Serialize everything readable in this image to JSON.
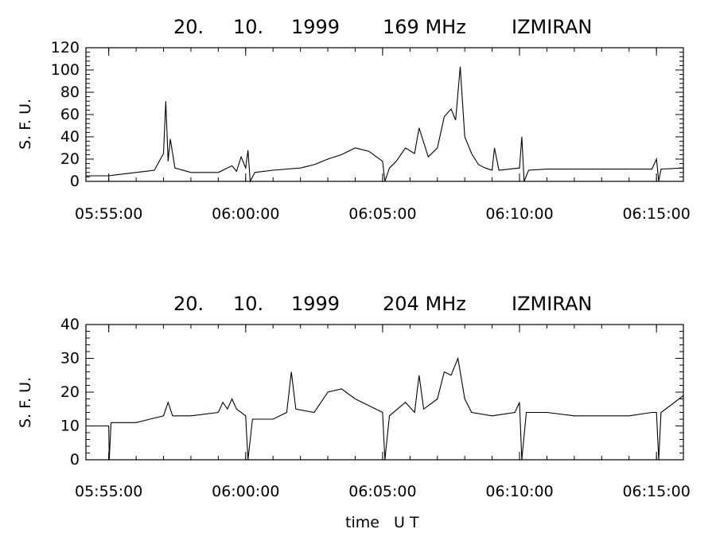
{
  "chart_data": [
    {
      "type": "line",
      "title_parts": [
        "20.",
        "10.",
        "1999",
        "169 MHz",
        "IZMIRAN"
      ],
      "ylabel": "S. F. U.",
      "xlabel": "",
      "ylim": [
        0,
        120
      ],
      "xlim": [
        "05:54:10",
        "06:15:59"
      ],
      "yticks": [
        0,
        20,
        40,
        60,
        80,
        100,
        120
      ],
      "xticks": [
        "05:55:00",
        "06:00:00",
        "06:05:00",
        "06:10:00",
        "06:15:00"
      ],
      "series": [
        {
          "values": [
            [
              "05:54:10",
              5
            ],
            [
              "05:55:00",
              5
            ],
            [
              "05:55:20",
              6
            ],
            [
              "05:55:40",
              7
            ],
            [
              "05:56:00",
              8
            ],
            [
              "05:56:20",
              9
            ],
            [
              "05:56:40",
              10
            ],
            [
              "05:57:00",
              25
            ],
            [
              "05:57:05",
              72
            ],
            [
              "05:57:10",
              18
            ],
            [
              "05:57:15",
              38
            ],
            [
              "05:57:25",
              12
            ],
            [
              "05:58:00",
              8
            ],
            [
              "05:59:00",
              8
            ],
            [
              "05:59:30",
              14
            ],
            [
              "05:59:40",
              9
            ],
            [
              "05:59:50",
              22
            ],
            [
              "06:00:00",
              12
            ],
            [
              "06:00:05",
              28
            ],
            [
              "06:00:10",
              0
            ],
            [
              "06:00:20",
              8
            ],
            [
              "06:01:00",
              10
            ],
            [
              "06:02:00",
              12
            ],
            [
              "06:02:30",
              15
            ],
            [
              "06:03:00",
              20
            ],
            [
              "06:03:30",
              24
            ],
            [
              "06:04:00",
              30
            ],
            [
              "06:04:30",
              27
            ],
            [
              "06:05:00",
              18
            ],
            [
              "06:05:05",
              0
            ],
            [
              "06:05:15",
              12
            ],
            [
              "06:05:30",
              18
            ],
            [
              "06:05:50",
              30
            ],
            [
              "06:06:10",
              25
            ],
            [
              "06:06:20",
              48
            ],
            [
              "06:06:40",
              22
            ],
            [
              "06:07:00",
              30
            ],
            [
              "06:07:15",
              58
            ],
            [
              "06:07:30",
              65
            ],
            [
              "06:07:40",
              55
            ],
            [
              "06:07:50",
              103
            ],
            [
              "06:08:00",
              40
            ],
            [
              "06:08:15",
              25
            ],
            [
              "06:08:30",
              15
            ],
            [
              "06:08:45",
              12
            ],
            [
              "06:09:00",
              10
            ],
            [
              "06:09:05",
              30
            ],
            [
              "06:09:15",
              10
            ],
            [
              "06:10:00",
              12
            ],
            [
              "06:10:05",
              40
            ],
            [
              "06:10:10",
              0
            ],
            [
              "06:10:20",
              10
            ],
            [
              "06:11:00",
              11
            ],
            [
              "06:12:00",
              11
            ],
            [
              "06:13:00",
              11
            ],
            [
              "06:14:00",
              11
            ],
            [
              "06:14:50",
              11
            ],
            [
              "06:15:00",
              20
            ],
            [
              "06:15:05",
              0
            ],
            [
              "06:15:10",
              11
            ],
            [
              "06:15:59",
              12
            ]
          ]
        }
      ]
    },
    {
      "type": "line",
      "title_parts": [
        "20.",
        "10.",
        "1999",
        "204 MHz",
        "IZMIRAN"
      ],
      "ylabel": "S. F. U.",
      "xlabel": "time   U T",
      "ylim": [
        0,
        40
      ],
      "xlim": [
        "05:54:10",
        "06:15:59"
      ],
      "yticks": [
        0,
        10,
        20,
        30,
        40
      ],
      "xticks": [
        "05:55:00",
        "06:00:00",
        "06:05:00",
        "06:10:00",
        "06:15:00"
      ],
      "series": [
        {
          "values": [
            [
              "05:54:10",
              10
            ],
            [
              "05:55:00",
              10
            ],
            [
              "05:55:01",
              0
            ],
            [
              "05:55:05",
              11
            ],
            [
              "05:56:00",
              11
            ],
            [
              "05:56:30",
              12
            ],
            [
              "05:57:00",
              13
            ],
            [
              "05:57:10",
              17
            ],
            [
              "05:57:20",
              13
            ],
            [
              "05:58:00",
              13
            ],
            [
              "05:59:00",
              14
            ],
            [
              "05:59:10",
              17
            ],
            [
              "05:59:20",
              15
            ],
            [
              "05:59:30",
              18
            ],
            [
              "05:59:40",
              15
            ],
            [
              "06:00:00",
              13
            ],
            [
              "06:00:05",
              0
            ],
            [
              "06:00:15",
              12
            ],
            [
              "06:01:00",
              12
            ],
            [
              "06:01:30",
              14
            ],
            [
              "06:01:40",
              26
            ],
            [
              "06:01:50",
              15
            ],
            [
              "06:02:30",
              14
            ],
            [
              "06:03:00",
              20
            ],
            [
              "06:03:30",
              21
            ],
            [
              "06:04:00",
              18
            ],
            [
              "06:04:30",
              16
            ],
            [
              "06:05:00",
              14
            ],
            [
              "06:05:05",
              0
            ],
            [
              "06:05:15",
              13
            ],
            [
              "06:05:50",
              17
            ],
            [
              "06:06:10",
              14
            ],
            [
              "06:06:20",
              25
            ],
            [
              "06:06:30",
              15
            ],
            [
              "06:07:00",
              18
            ],
            [
              "06:07:15",
              26
            ],
            [
              "06:07:30",
              25
            ],
            [
              "06:07:45",
              30
            ],
            [
              "06:08:00",
              18
            ],
            [
              "06:08:15",
              14
            ],
            [
              "06:09:00",
              13
            ],
            [
              "06:09:50",
              14
            ],
            [
              "06:10:00",
              17
            ],
            [
              "06:10:05",
              0
            ],
            [
              "06:10:15",
              14
            ],
            [
              "06:11:00",
              14
            ],
            [
              "06:12:00",
              13
            ],
            [
              "06:13:00",
              13
            ],
            [
              "06:14:00",
              13
            ],
            [
              "06:14:50",
              14
            ],
            [
              "06:15:00",
              14
            ],
            [
              "06:15:05",
              0
            ],
            [
              "06:15:10",
              14
            ],
            [
              "06:15:30",
              16
            ],
            [
              "06:15:59",
              19
            ]
          ]
        }
      ]
    }
  ]
}
